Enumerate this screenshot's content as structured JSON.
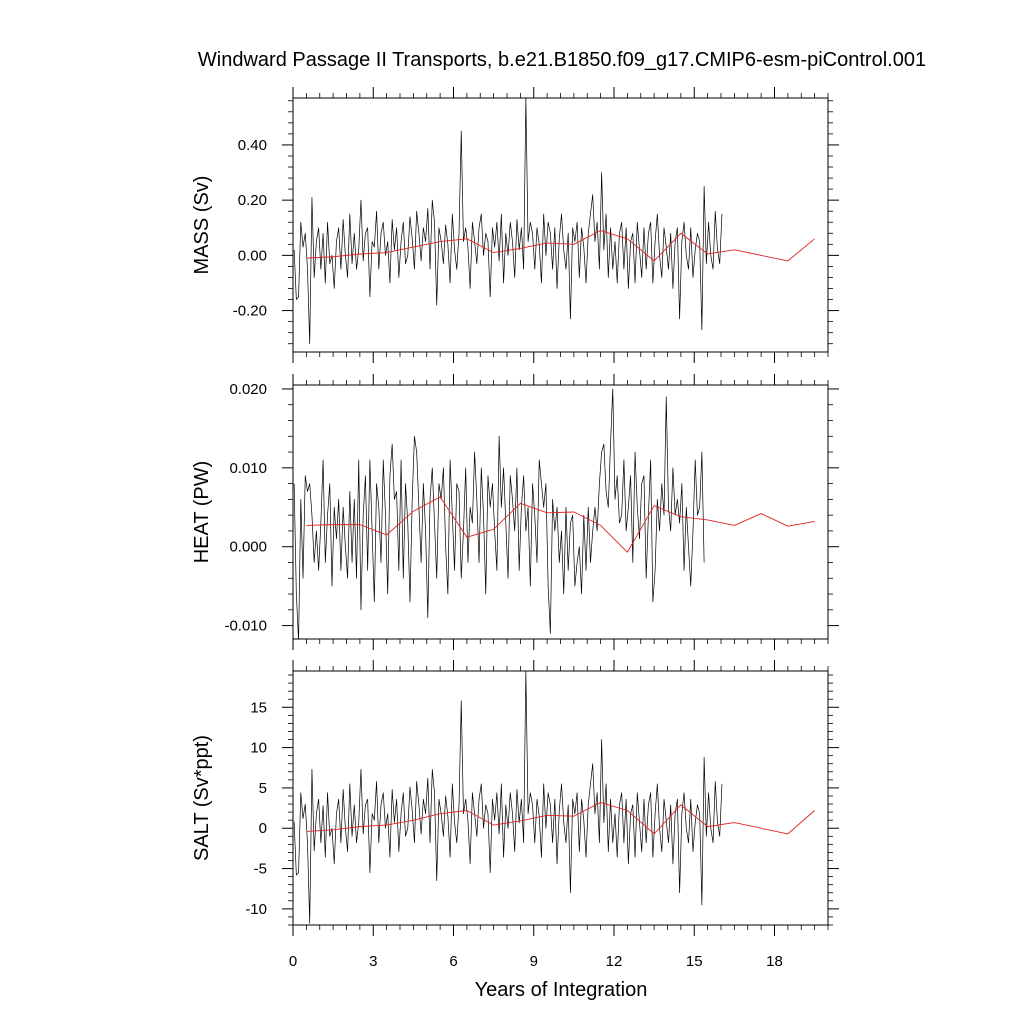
{
  "chart_data": {
    "type": "line",
    "title": "Windward Passage II Transports, b.e21.B1850.f09_g17.CMIP6-esm-piControl.001",
    "xlabel": "Years of Integration",
    "xlim": [
      0,
      20
    ],
    "x_ticks": [
      0,
      3,
      6,
      9,
      12,
      15,
      18
    ],
    "x_tick_labels": [
      "0",
      "3",
      "6",
      "9",
      "12",
      "15",
      "18"
    ],
    "grid": false,
    "panels": [
      {
        "ylabel": "MASS (Sv)",
        "ylim": [
          -0.35,
          0.57
        ],
        "y_ticks": [
          -0.2,
          0.0,
          0.2,
          0.4
        ],
        "y_tick_labels": [
          "-0.20",
          "0.00",
          "0.20",
          "0.40"
        ],
        "series": [
          {
            "role": "monthly",
            "color": "#000000",
            "x_start": 0.0417,
            "x_step": 0.0833,
            "values": [
              0.02,
              -0.16,
              -0.15,
              0.12,
              0.03,
              0.08,
              -0.05,
              -0.32,
              0.21,
              -0.08,
              0.05,
              0.1,
              -0.05,
              0.08,
              -0.1,
              0.12,
              -0.03,
              0.0,
              -0.12,
              0.05,
              0.1,
              -0.05,
              0.13,
              0.0,
              -0.08,
              0.15,
              -0.03,
              0.08,
              -0.05,
              0.02,
              0.2,
              -0.02,
              0.08,
              0.1,
              -0.15,
              0.05,
              0.03,
              0.16,
              -0.05,
              0.08,
              0.12,
              0.0,
              0.05,
              -0.1,
              0.13,
              0.02,
              0.1,
              -0.08,
              0.05,
              0.12,
              -0.03,
              0.0,
              0.14,
              0.06,
              -0.05,
              0.16,
              0.08,
              -0.02,
              0.1,
              0.05,
              0.17,
              -0.05,
              0.2,
              0.12,
              -0.18,
              0.1,
              0.05,
              -0.03,
              0.11,
              0.04,
              -0.1,
              0.15,
              0.02,
              -0.05,
              0.08,
              0.45,
              0.05,
              0.1,
              0.03,
              -0.12,
              0.12,
              0.05,
              -0.03,
              0.1,
              0.15,
              0.0,
              0.08,
              0.05,
              -0.15,
              0.1,
              0.03,
              0.12,
              -0.02,
              0.15,
              -0.1,
              0.08,
              0.0,
              0.12,
              0.05,
              -0.08,
              0.13,
              0.02,
              0.1,
              -0.05,
              0.57,
              0.05,
              0.12,
              0.08,
              -0.05,
              0.1,
              0.04,
              -0.1,
              0.15,
              0.0,
              0.12,
              0.08,
              -0.05,
              0.1,
              -0.12,
              0.06,
              0.15,
              0.02,
              -0.05,
              0.08,
              -0.23,
              0.1,
              0.05,
              0.12,
              -0.08,
              0.1,
              0.03,
              -0.1,
              0.08,
              0.15,
              0.22,
              0.05,
              0.12,
              -0.05,
              0.3,
              0.02,
              0.15,
              -0.08,
              0.1,
              -0.05,
              0.05,
              -0.1,
              0.08,
              0.12,
              -0.05,
              0.1,
              -0.12,
              0.05,
              0.08,
              -0.1,
              0.12,
              0.02,
              -0.08,
              0.1,
              -0.05,
              0.08,
              0.12,
              -0.1,
              0.05,
              0.15,
              0.0,
              -0.08,
              0.1,
              0.03,
              -0.05,
              0.08,
              -0.12,
              0.05,
              0.1,
              -0.23,
              0.05,
              0.12,
              0.0,
              -0.05,
              0.1,
              -0.08,
              0.02,
              0.08,
              0.05,
              -0.27,
              0.25,
              -0.03,
              0.12,
              0.0,
              -0.05,
              0.16,
              0.02,
              -0.03,
              0.15
            ]
          },
          {
            "role": "annual-mean",
            "color": "#e32222",
            "x_start": 0.5,
            "x_step": 1,
            "values": [
              -0.01,
              -0.005,
              0.005,
              0.01,
              0.03,
              0.05,
              0.06,
              0.01,
              0.025,
              0.045,
              0.04,
              0.09,
              0.06,
              -0.02,
              0.08,
              0.005,
              0.02,
              0.0,
              -0.02,
              0.06
            ]
          }
        ]
      },
      {
        "ylabel": "HEAT (PW)",
        "ylim": [
          -0.0117,
          0.0205
        ],
        "y_ticks": [
          -0.01,
          0.0,
          0.01,
          0.02
        ],
        "y_tick_labels": [
          "-0.010",
          "0.000",
          "0.010",
          "0.020"
        ],
        "series": [
          {
            "role": "monthly",
            "color": "#000000",
            "x_start": 0.0417,
            "x_step": 0.0833,
            "values": [
              0.008,
              -0.006,
              -0.012,
              0.006,
              -0.004,
              0.009,
              0.007,
              0.008,
              0.004,
              -0.002,
              0.002,
              -0.003,
              0.003,
              0.011,
              -0.002,
              0.004,
              0.008,
              -0.005,
              0.005,
              0.001,
              0.006,
              -0.003,
              0.005,
              0.0,
              -0.004,
              0.007,
              -0.002,
              0.006,
              -0.004,
              0.011,
              -0.008,
              0.004,
              0.009,
              -0.003,
              0.011,
              0.002,
              -0.007,
              0.008,
              0.005,
              -0.002,
              0.011,
              0.004,
              -0.006,
              0.009,
              0.013,
              0.006,
              0.007,
              -0.003,
              0.011,
              -0.004,
              0.008,
              0.003,
              -0.007,
              0.006,
              0.014,
              0.012,
              0.005,
              -0.002,
              0.008,
              0.002,
              -0.009,
              0.006,
              0.01,
              0.003,
              -0.004,
              0.008,
              0.006,
              0.01,
              0.0,
              -0.006,
              0.011,
              0.004,
              -0.003,
              0.008,
              0.007,
              -0.004,
              0.002,
              0.01,
              -0.002,
              0.005,
              0.003,
              0.012,
              0.006,
              -0.002,
              0.01,
              0.004,
              -0.006,
              0.009,
              0.005,
              0.008,
              0.002,
              -0.003,
              0.014,
              0.005,
              0.01,
              0.003,
              -0.004,
              0.009,
              0.006,
              0.002,
              0.01,
              -0.003,
              0.005,
              0.009,
              0.002,
              0.005,
              -0.005,
              0.008,
              0.004,
              -0.002,
              0.011,
              0.008,
              0.005,
              0.008,
              -0.005,
              -0.011,
              0.006,
              0.002,
              0.005,
              -0.002,
              0.002,
              -0.006,
              0.005,
              -0.003,
              0.003,
              0.004,
              -0.005,
              -0.002,
              0.0,
              -0.006,
              0.004,
              -0.003,
              0.005,
              -0.002,
              0.002,
              0.005,
              0.002,
              0.008,
              0.012,
              0.013,
              0.007,
              0.005,
              0.013,
              0.02,
              0.006,
              0.009,
              0.003,
              0.004,
              0.011,
              0.002,
              0.005,
              0.009,
              -0.002,
              0.012,
              0.005,
              0.001,
              0.008,
              0.009,
              -0.004,
              0.004,
              0.011,
              -0.007,
              -0.003,
              0.006,
              0.002,
              0.008,
              0.004,
              0.019,
              0.005,
              0.002,
              0.01,
              0.004,
              0.006,
              0.003,
              0.008,
              -0.003,
              0.005,
              0.0,
              -0.005,
              0.002,
              0.011,
              0.004,
              0.005,
              0.012,
              -0.002
            ]
          },
          {
            "role": "annual-mean",
            "color": "#e32222",
            "x_start": 0.5,
            "x_step": 1,
            "values": [
              0.0027,
              0.0028,
              0.0028,
              0.0015,
              0.0045,
              0.0063,
              0.0012,
              0.0022,
              0.0055,
              0.0043,
              0.0044,
              0.0027,
              -0.0007,
              0.0052,
              0.0038,
              0.0034,
              0.0027,
              0.0042,
              0.0026,
              0.0032
            ]
          }
        ]
      },
      {
        "ylabel": "SALT (Sv*ppt)",
        "ylim": [
          -12.0,
          19.5
        ],
        "y_ticks": [
          -10,
          -5,
          0,
          5,
          10,
          15
        ],
        "y_tick_labels": [
          "-10",
          "-5",
          "0",
          "5",
          "10",
          "15"
        ],
        "series": [
          {
            "role": "monthly",
            "color": "#000000",
            "x_start": 0.0417,
            "x_step": 0.0833,
            "values": [
              0.8,
              -5.8,
              -5.5,
              4.4,
              1.2,
              3.0,
              -1.8,
              -11.8,
              7.3,
              -2.8,
              1.8,
              3.6,
              -1.8,
              2.8,
              -3.6,
              4.4,
              -1.0,
              0.0,
              -4.4,
              1.8,
              3.6,
              -1.8,
              4.8,
              0.0,
              -2.9,
              5.5,
              -1.0,
              2.9,
              -1.8,
              0.7,
              7.3,
              -0.7,
              2.9,
              3.6,
              -5.5,
              1.8,
              1.0,
              5.8,
              -1.8,
              2.9,
              4.4,
              0.0,
              1.8,
              -3.6,
              4.8,
              0.7,
              3.6,
              -2.9,
              1.8,
              4.4,
              -1.0,
              0.0,
              5.1,
              2.2,
              -1.8,
              5.8,
              2.9,
              -0.7,
              3.6,
              1.8,
              6.2,
              -1.8,
              7.3,
              4.4,
              -6.5,
              3.6,
              1.8,
              -1.0,
              4.0,
              1.5,
              -3.6,
              5.5,
              0.7,
              -1.8,
              2.9,
              15.8,
              1.8,
              3.6,
              1.0,
              -4.4,
              4.4,
              1.8,
              -1.0,
              3.6,
              5.5,
              0.0,
              2.9,
              1.8,
              -5.5,
              3.6,
              1.0,
              4.4,
              -0.7,
              5.5,
              -3.6,
              2.9,
              0.0,
              4.4,
              1.8,
              -2.9,
              4.8,
              0.7,
              3.6,
              -1.8,
              19.5,
              1.8,
              4.4,
              2.9,
              -1.8,
              3.6,
              1.5,
              -3.6,
              5.5,
              0.0,
              4.4,
              2.9,
              -1.8,
              3.6,
              -4.4,
              2.2,
              5.5,
              0.7,
              -1.8,
              2.9,
              -8.0,
              3.6,
              1.8,
              4.4,
              -2.9,
              3.6,
              1.0,
              -3.6,
              2.9,
              5.5,
              8.0,
              1.8,
              4.4,
              -1.8,
              11.0,
              0.7,
              5.5,
              -2.9,
              3.6,
              -1.8,
              1.8,
              -3.6,
              2.9,
              4.4,
              -1.8,
              3.6,
              -4.4,
              1.8,
              2.9,
              -3.6,
              4.4,
              0.7,
              -2.9,
              3.6,
              -1.8,
              2.9,
              4.4,
              -3.6,
              1.8,
              5.5,
              0.0,
              -2.9,
              3.6,
              1.0,
              -1.8,
              2.9,
              -4.4,
              1.8,
              3.6,
              -8.0,
              1.8,
              4.4,
              0.0,
              -1.8,
              3.6,
              -2.9,
              0.7,
              2.9,
              1.8,
              -9.5,
              8.8,
              -1.0,
              4.4,
              0.0,
              -1.8,
              5.8,
              0.7,
              -1.0,
              5.5
            ]
          },
          {
            "role": "annual-mean",
            "color": "#e32222",
            "x_start": 0.5,
            "x_step": 1,
            "values": [
              -0.4,
              -0.2,
              0.2,
              0.4,
              1.0,
              1.8,
              2.2,
              0.4,
              0.9,
              1.6,
              1.5,
              3.2,
              2.2,
              -0.7,
              2.9,
              0.2,
              0.7,
              0.0,
              -0.7,
              2.2
            ]
          }
        ]
      }
    ]
  }
}
